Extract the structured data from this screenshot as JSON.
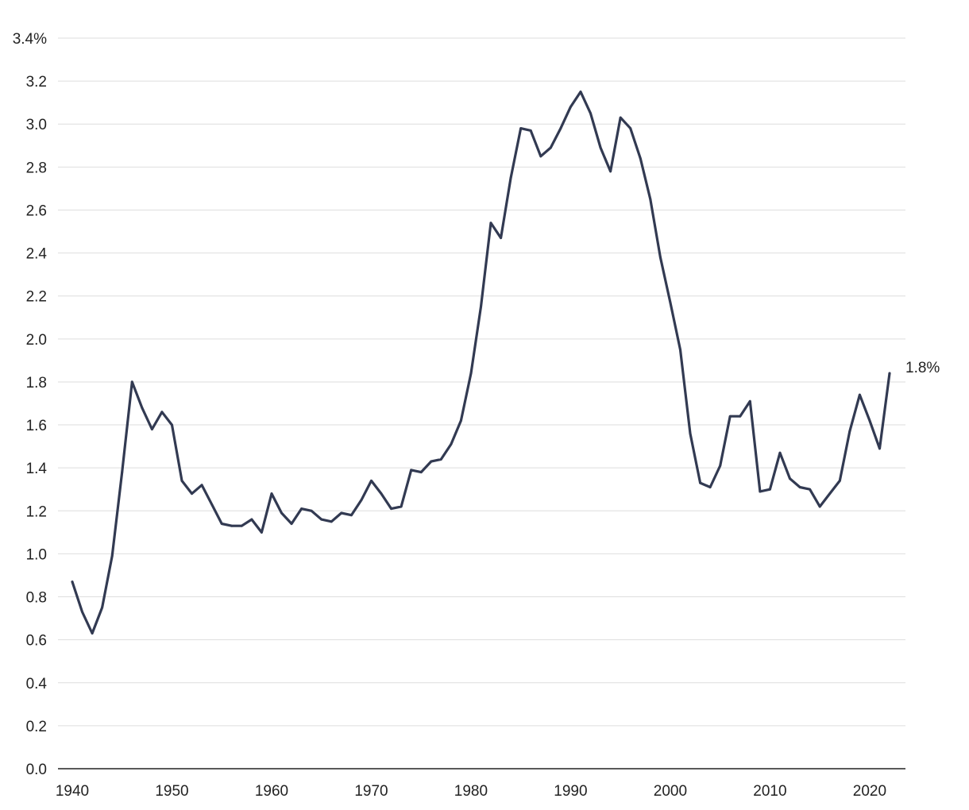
{
  "chart_data": {
    "type": "line",
    "title": "",
    "xlabel": "",
    "ylabel": "",
    "xlim": [
      1940,
      2022
    ],
    "ylim": [
      0,
      3.4
    ],
    "grid": true,
    "y_ticks": [
      {
        "value": 0.0,
        "label": "0.0"
      },
      {
        "value": 0.2,
        "label": "0.2"
      },
      {
        "value": 0.4,
        "label": "0.4"
      },
      {
        "value": 0.6,
        "label": "0.6"
      },
      {
        "value": 0.8,
        "label": "0.8"
      },
      {
        "value": 1.0,
        "label": "1.0"
      },
      {
        "value": 1.2,
        "label": "1.2"
      },
      {
        "value": 1.4,
        "label": "1.4"
      },
      {
        "value": 1.6,
        "label": "1.6"
      },
      {
        "value": 1.8,
        "label": "1.8"
      },
      {
        "value": 2.0,
        "label": "2.0"
      },
      {
        "value": 2.2,
        "label": "2.2"
      },
      {
        "value": 2.4,
        "label": "2.4"
      },
      {
        "value": 2.6,
        "label": "2.6"
      },
      {
        "value": 2.8,
        "label": "2.8"
      },
      {
        "value": 3.0,
        "label": "3.0"
      },
      {
        "value": 3.2,
        "label": "3.2"
      },
      {
        "value": 3.4,
        "label": "3.4%"
      }
    ],
    "x_ticks": [
      {
        "value": 1940,
        "label": "1940"
      },
      {
        "value": 1950,
        "label": "1950"
      },
      {
        "value": 1960,
        "label": "1960"
      },
      {
        "value": 1970,
        "label": "1970"
      },
      {
        "value": 1980,
        "label": "1980"
      },
      {
        "value": 1990,
        "label": "1990"
      },
      {
        "value": 2000,
        "label": "2000"
      },
      {
        "value": 2010,
        "label": "2010"
      },
      {
        "value": 2020,
        "label": "2020"
      }
    ],
    "end_label": "1.8%",
    "colors": {
      "line": "#323a52",
      "grid": "#dedede",
      "axis": "#222222"
    },
    "series": [
      {
        "x": [
          1940,
          1941,
          1942,
          1943,
          1944,
          1945,
          1946,
          1947,
          1948,
          1949,
          1950,
          1951,
          1952,
          1953,
          1954,
          1955,
          1956,
          1957,
          1958,
          1959,
          1960,
          1961,
          1962,
          1963,
          1964,
          1965,
          1966,
          1967,
          1968,
          1969,
          1970,
          1971,
          1972,
          1973,
          1974,
          1975,
          1976,
          1977,
          1978,
          1979,
          1980,
          1981,
          1982,
          1983,
          1984,
          1985,
          1986,
          1987,
          1988,
          1989,
          1990,
          1991,
          1992,
          1993,
          1994,
          1995,
          1996,
          1997,
          1998,
          1999,
          2000,
          2001,
          2002,
          2003,
          2004,
          2005,
          2006,
          2007,
          2008,
          2009,
          2010,
          2011,
          2012,
          2013,
          2014,
          2015,
          2016,
          2017,
          2018,
          2019,
          2020,
          2021,
          2022
        ],
        "values": [
          0.87,
          0.73,
          0.63,
          0.75,
          0.99,
          1.38,
          1.8,
          1.68,
          1.58,
          1.66,
          1.6,
          1.34,
          1.28,
          1.32,
          1.23,
          1.14,
          1.13,
          1.13,
          1.16,
          1.1,
          1.28,
          1.19,
          1.14,
          1.21,
          1.2,
          1.16,
          1.15,
          1.19,
          1.18,
          1.25,
          1.34,
          1.28,
          1.21,
          1.22,
          1.39,
          1.38,
          1.43,
          1.44,
          1.51,
          1.62,
          1.84,
          2.15,
          2.54,
          2.47,
          2.75,
          2.98,
          2.97,
          2.85,
          2.89,
          2.98,
          3.08,
          3.15,
          3.05,
          2.89,
          2.78,
          3.03,
          2.98,
          2.84,
          2.65,
          2.38,
          2.17,
          1.95,
          1.56,
          1.33,
          1.31,
          1.41,
          1.64,
          1.64,
          1.71,
          1.29,
          1.3,
          1.47,
          1.35,
          1.31,
          1.3,
          1.22,
          1.28,
          1.34,
          1.57,
          1.74,
          1.62,
          1.49,
          1.84
        ]
      }
    ]
  }
}
